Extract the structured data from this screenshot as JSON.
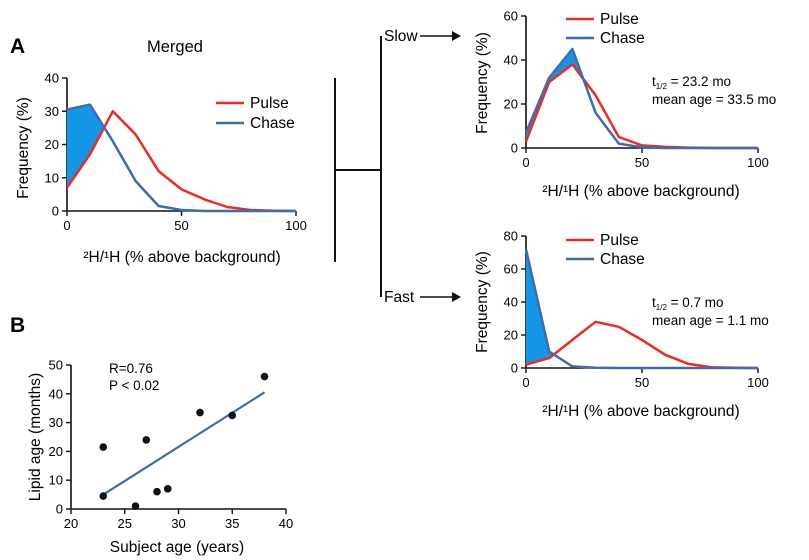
{
  "figure": {
    "panel_a_letter": "A",
    "panel_b_letter": "B",
    "slow_label": "Slow",
    "fast_label": "Fast"
  },
  "chart_data": [
    {
      "id": "merged",
      "type": "line",
      "title": "Merged",
      "xlabel": "²H/¹H (% above background)",
      "ylabel": "Frequency (%)",
      "xlim": [
        0,
        100
      ],
      "ylim": [
        0,
        40
      ],
      "xticks": [
        0,
        50,
        100
      ],
      "yticks": [
        0,
        10,
        20,
        30,
        40
      ],
      "legend": "right",
      "series": [
        {
          "name": "Pulse",
          "color": "#ee2a24",
          "x": [
            0,
            10,
            20,
            30,
            40,
            50,
            60,
            70,
            80,
            90,
            100
          ],
          "values": [
            7,
            17,
            30,
            23,
            12,
            6.5,
            3.5,
            1.2,
            0.3,
            0.1,
            0
          ]
        },
        {
          "name": "Chase",
          "color": "#3e6cae",
          "x": [
            0,
            10,
            20,
            30,
            40,
            50,
            60,
            70,
            80,
            90,
            100
          ],
          "values": [
            30.5,
            32,
            21,
            9,
            1.5,
            0.3,
            0,
            0,
            0,
            0,
            0
          ]
        }
      ],
      "fill_color": "#1496e6"
    },
    {
      "id": "slow",
      "type": "line",
      "xlabel": "²H/¹H (% above background)",
      "ylabel": "Frequency (%)",
      "xlim": [
        0,
        100
      ],
      "ylim": [
        0,
        60
      ],
      "xticks": [
        0,
        50,
        100
      ],
      "yticks": [
        0,
        20,
        40,
        60
      ],
      "legend": "top-right",
      "annotation_t": "= 23.2 mo",
      "annotation_mean": "mean age = 33.5 mo",
      "series": [
        {
          "name": "Pulse",
          "color": "#ee2a24",
          "x": [
            0,
            10,
            20,
            30,
            40,
            50,
            60,
            70,
            80,
            90,
            100
          ],
          "values": [
            3,
            30,
            38,
            24,
            5,
            1.2,
            0.5,
            0.2,
            0,
            0,
            0
          ]
        },
        {
          "name": "Chase",
          "color": "#3e6cae",
          "x": [
            0,
            10,
            20,
            30,
            40,
            50,
            60,
            70,
            80,
            90,
            100
          ],
          "values": [
            7,
            32,
            45,
            16,
            2,
            0.3,
            0,
            0,
            0,
            0,
            0
          ]
        }
      ],
      "fill_color": "#1496e6"
    },
    {
      "id": "fast",
      "type": "line",
      "xlabel": "²H/¹H (% above background)",
      "ylabel": "Frequency (%)",
      "xlim": [
        0,
        100
      ],
      "ylim": [
        0,
        80
      ],
      "xticks": [
        0,
        50,
        100
      ],
      "yticks": [
        0,
        20,
        40,
        60,
        80
      ],
      "legend": "top-right",
      "annotation_t": "= 0.7 mo",
      "annotation_mean": "mean age = 1.1 mo",
      "series": [
        {
          "name": "Pulse",
          "color": "#ee2a24",
          "x": [
            0,
            10,
            20,
            30,
            40,
            50,
            60,
            70,
            80,
            90,
            100
          ],
          "values": [
            2,
            6,
            17,
            28,
            25,
            17,
            8,
            2.5,
            0.5,
            0.1,
            0
          ]
        },
        {
          "name": "Chase",
          "color": "#3e6cae",
          "x": [
            0,
            10,
            20,
            30,
            40,
            50,
            60,
            70,
            80,
            90,
            100
          ],
          "values": [
            72,
            10,
            1,
            0.2,
            0,
            0,
            0,
            0,
            0,
            0,
            0
          ]
        }
      ],
      "fill_color": "#1496e6"
    },
    {
      "id": "correlation",
      "type": "scatter",
      "xlabel": "Subject age (years)",
      "ylabel": "Lipid age (months)",
      "xlim": [
        20,
        40
      ],
      "ylim": [
        0,
        50
      ],
      "xticks": [
        20,
        25,
        30,
        35,
        40
      ],
      "yticks": [
        0,
        10,
        20,
        30,
        40,
        50
      ],
      "annotation_r": "R=0.76",
      "annotation_p": "P < 0.02",
      "points": {
        "x": [
          23,
          23,
          26,
          27,
          28,
          29,
          32,
          35,
          38
        ],
        "y": [
          21.5,
          4.5,
          1,
          24,
          6,
          7,
          33.5,
          32.5,
          46
        ]
      },
      "fit_line": {
        "x": [
          23,
          38
        ],
        "y": [
          5,
          40.5
        ],
        "color": "#3e6cae"
      }
    }
  ]
}
